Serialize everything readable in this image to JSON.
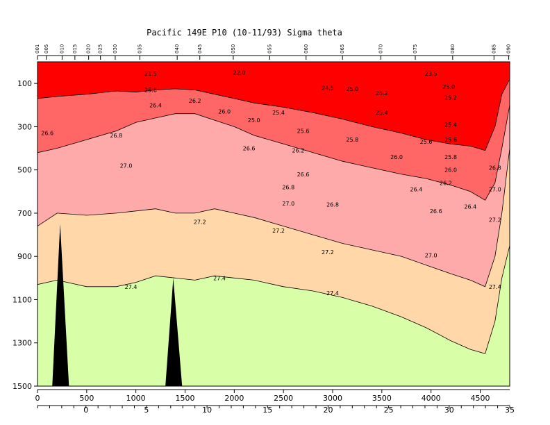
{
  "chart_data": {
    "type": "heatmap",
    "title": "Pacific 149E P10 (10-11/93) Sigma theta",
    "x_axis": {
      "range": [
        0,
        4800
      ],
      "ticks": [
        0,
        500,
        1000,
        1500,
        2000,
        2500,
        3000,
        3500,
        4000,
        4500
      ],
      "tick_labels": [
        "0",
        "500",
        "1000",
        "1500",
        "2000",
        "2500",
        "3000",
        "3500",
        "4000",
        "4500"
      ]
    },
    "y_axis": {
      "range": [
        0,
        1500
      ],
      "inverted": true,
      "ticks": [
        100,
        300,
        500,
        700,
        900,
        1100,
        1300,
        1500
      ],
      "tick_labels": [
        "100",
        "300",
        "500",
        "700",
        "900",
        "1100",
        "1300",
        "1500"
      ]
    },
    "secondary_x_axis": {
      "range": [
        -4,
        35
      ],
      "ticks": [
        0,
        5,
        10,
        15,
        20,
        25,
        30,
        35
      ],
      "tick_labels": [
        "0",
        "5",
        "10",
        "15",
        "20",
        "25",
        "30",
        "35"
      ]
    },
    "stations": {
      "labels": [
        "001",
        "005",
        "010",
        "015",
        "020",
        "025",
        "030",
        "035",
        "040",
        "045",
        "050",
        "055",
        "060",
        "065",
        "070",
        "075",
        "080",
        "085",
        "090"
      ],
      "x": [
        0,
        90,
        250,
        380,
        520,
        640,
        790,
        1040,
        1420,
        1650,
        1990,
        2360,
        2730,
        3100,
        3490,
        3840,
        4220,
        4640,
        4790
      ]
    },
    "color_bands": [
      {
        "range": "<26.4",
        "color": "#ff0000"
      },
      {
        "range": "26.4-26.8",
        "color": "#ff6666"
      },
      {
        "range": "26.8-27.2",
        "color": "#ffaaaa"
      },
      {
        "range": "27.2-27.4",
        "color": "#ffd7a8"
      },
      {
        "range": ">27.4",
        "color": "#d8ffa8"
      }
    ],
    "contours": [
      {
        "level": 26.4,
        "x": [
          0,
          200,
          500,
          800,
          1000,
          1200,
          1400,
          1600,
          1800,
          2000,
          2200,
          2500,
          2800,
          3100,
          3400,
          3700,
          3950,
          4200,
          4400,
          4550,
          4650,
          4720,
          4800
        ],
        "y": [
          170,
          160,
          150,
          135,
          140,
          130,
          125,
          130,
          150,
          170,
          190,
          210,
          235,
          265,
          300,
          330,
          360,
          380,
          390,
          410,
          300,
          150,
          80
        ]
      },
      {
        "level": 26.8,
        "x": [
          0,
          200,
          500,
          800,
          1000,
          1200,
          1400,
          1600,
          1800,
          2000,
          2200,
          2500,
          2800,
          3100,
          3400,
          3700,
          3950,
          4200,
          4400,
          4550,
          4650,
          4720,
          4800
        ],
        "y": [
          420,
          400,
          360,
          320,
          280,
          260,
          240,
          240,
          270,
          300,
          340,
          380,
          420,
          460,
          490,
          520,
          540,
          570,
          600,
          640,
          560,
          400,
          200
        ]
      },
      {
        "level": 27.2,
        "x": [
          0,
          200,
          500,
          800,
          1000,
          1200,
          1400,
          1600,
          1800,
          2000,
          2200,
          2500,
          2800,
          3100,
          3400,
          3700,
          3950,
          4200,
          4400,
          4550,
          4650,
          4720,
          4800
        ],
        "y": [
          760,
          700,
          710,
          700,
          690,
          680,
          700,
          700,
          680,
          700,
          720,
          760,
          800,
          840,
          870,
          900,
          940,
          980,
          1010,
          1040,
          900,
          700,
          400
        ]
      },
      {
        "level": 27.4,
        "x": [
          0,
          200,
          500,
          800,
          1000,
          1200,
          1400,
          1600,
          1800,
          2000,
          2200,
          2500,
          2800,
          3100,
          3400,
          3700,
          3950,
          4200,
          4400,
          4550,
          4650,
          4720,
          4800
        ],
        "y": [
          1030,
          1010,
          1040,
          1040,
          1020,
          990,
          1000,
          1010,
          990,
          1000,
          1010,
          1040,
          1060,
          1090,
          1130,
          1180,
          1230,
          1290,
          1330,
          1350,
          1200,
          1000,
          850
        ]
      }
    ],
    "contour_labels": [
      {
        "text": "21.5",
        "x": 1150,
        "y": 55
      },
      {
        "text": "22.0",
        "x": 2050,
        "y": 50
      },
      {
        "text": "23.5",
        "x": 4000,
        "y": 55
      },
      {
        "text": "24.5",
        "x": 2950,
        "y": 120
      },
      {
        "text": "25.0",
        "x": 3200,
        "y": 125
      },
      {
        "text": "25.0",
        "x": 4180,
        "y": 115
      },
      {
        "text": "25.2",
        "x": 3500,
        "y": 145
      },
      {
        "text": "25.2",
        "x": 4200,
        "y": 165
      },
      {
        "text": "25.6",
        "x": 1150,
        "y": 130
      },
      {
        "text": "26.4",
        "x": 1200,
        "y": 200
      },
      {
        "text": "26.2",
        "x": 1600,
        "y": 180
      },
      {
        "text": "26.0",
        "x": 1900,
        "y": 230
      },
      {
        "text": "25.0",
        "x": 2200,
        "y": 270
      },
      {
        "text": "25.4",
        "x": 2450,
        "y": 235
      },
      {
        "text": "25.4",
        "x": 3500,
        "y": 235
      },
      {
        "text": "25.4",
        "x": 4200,
        "y": 290
      },
      {
        "text": "25.6",
        "x": 2700,
        "y": 320
      },
      {
        "text": "25.8",
        "x": 3200,
        "y": 360
      },
      {
        "text": "25.6",
        "x": 3950,
        "y": 370
      },
      {
        "text": "25.6",
        "x": 4200,
        "y": 360
      },
      {
        "text": "26.6",
        "x": 100,
        "y": 330
      },
      {
        "text": "26.8",
        "x": 800,
        "y": 340
      },
      {
        "text": "26.6",
        "x": 2150,
        "y": 400
      },
      {
        "text": "26.2",
        "x": 2650,
        "y": 410
      },
      {
        "text": "26.0",
        "x": 3650,
        "y": 440
      },
      {
        "text": "25.8",
        "x": 4200,
        "y": 440
      },
      {
        "text": "26.0",
        "x": 4200,
        "y": 500
      },
      {
        "text": "27.0",
        "x": 900,
        "y": 480
      },
      {
        "text": "26.6",
        "x": 2700,
        "y": 520
      },
      {
        "text": "26.8",
        "x": 4650,
        "y": 490
      },
      {
        "text": "26.8",
        "x": 2550,
        "y": 580
      },
      {
        "text": "26.4",
        "x": 3850,
        "y": 590
      },
      {
        "text": "26.2",
        "x": 4150,
        "y": 560
      },
      {
        "text": "27.0",
        "x": 4650,
        "y": 590
      },
      {
        "text": "27.0",
        "x": 2550,
        "y": 655
      },
      {
        "text": "26.8",
        "x": 3000,
        "y": 660
      },
      {
        "text": "26.6",
        "x": 4050,
        "y": 690
      },
      {
        "text": "26.4",
        "x": 4400,
        "y": 670
      },
      {
        "text": "27.2",
        "x": 1650,
        "y": 740
      },
      {
        "text": "27.2",
        "x": 2450,
        "y": 780
      },
      {
        "text": "27.2",
        "x": 4650,
        "y": 730
      },
      {
        "text": "27.2",
        "x": 2950,
        "y": 880
      },
      {
        "text": "27.0",
        "x": 4000,
        "y": 895
      },
      {
        "text": "27.4",
        "x": 950,
        "y": 1040
      },
      {
        "text": "27.4",
        "x": 1850,
        "y": 1000
      },
      {
        "text": "27.4",
        "x": 3000,
        "y": 1070
      },
      {
        "text": "27.4",
        "x": 4650,
        "y": 1040
      }
    ],
    "seafloor_spikes": [
      {
        "x_left": 150,
        "x_peak": 230,
        "x_right": 320,
        "peak_depth": 750
      },
      {
        "x_left": 1300,
        "x_peak": 1380,
        "x_right": 1470,
        "peak_depth": 1000
      }
    ]
  }
}
